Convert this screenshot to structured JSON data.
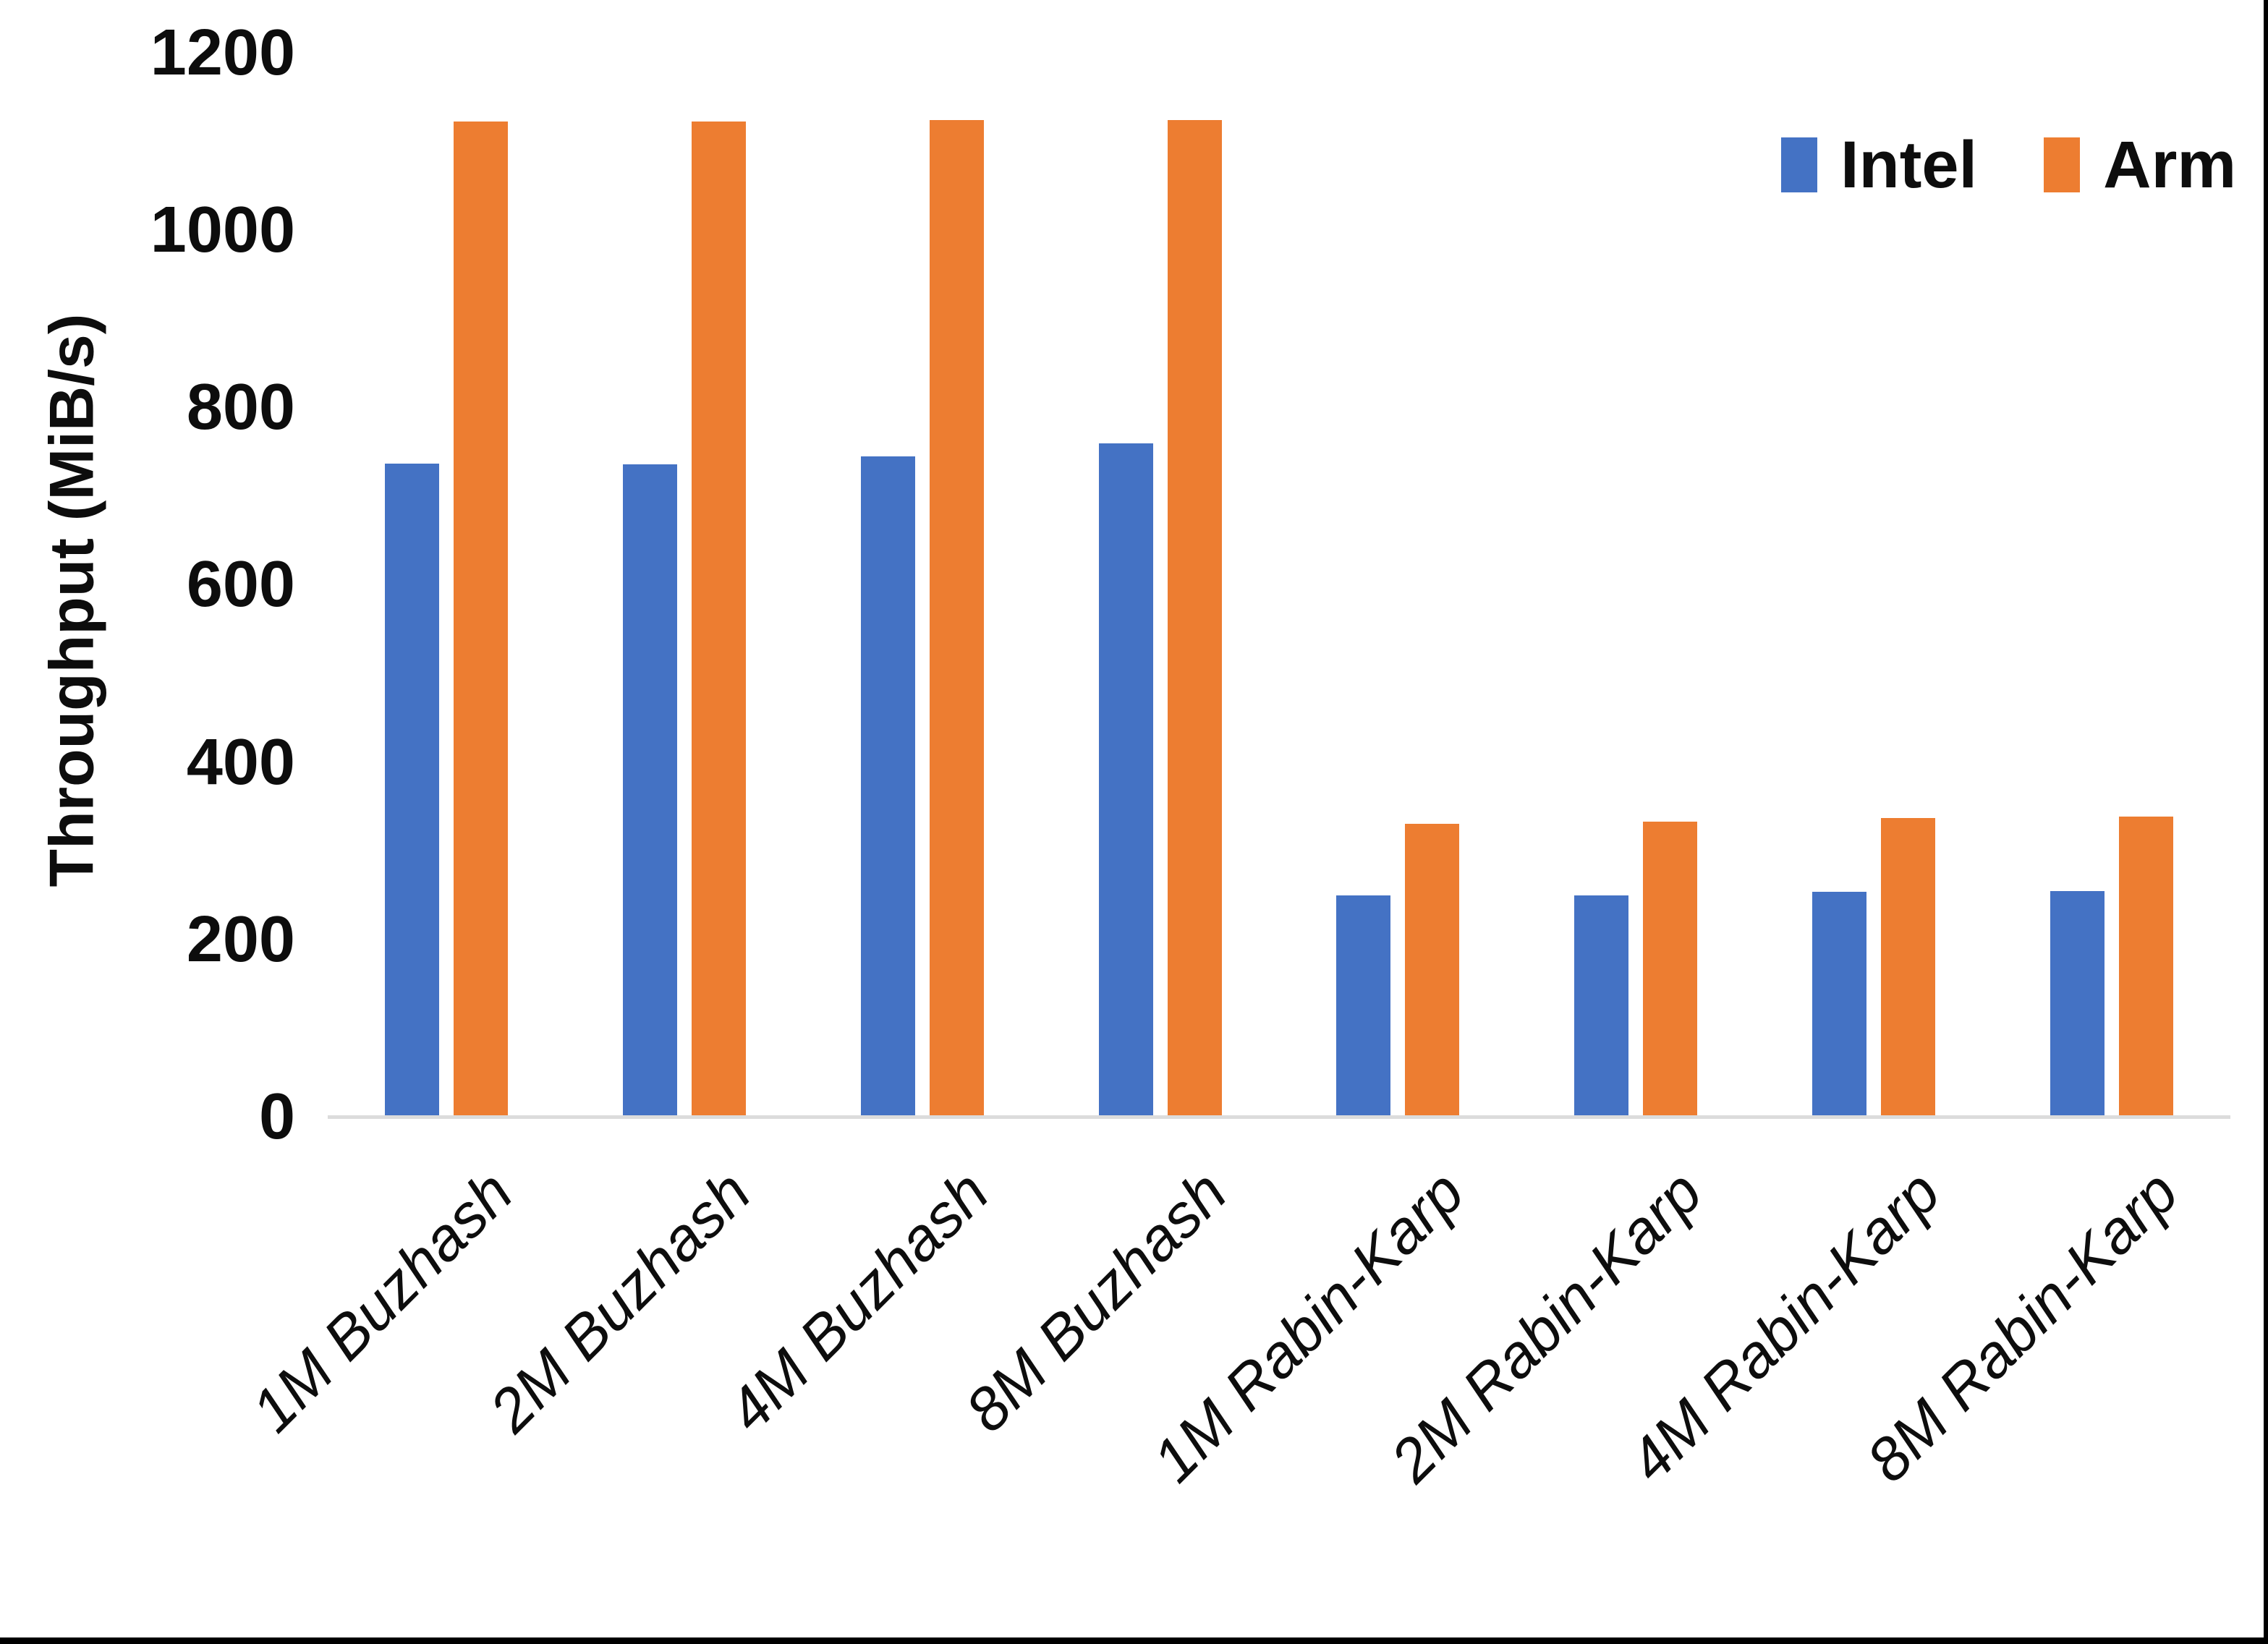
{
  "colors": {
    "background": "#ffffff",
    "axis_line": "#dcdcdc",
    "text": "#0d0d0d",
    "frame_border": "#000000",
    "intel": "#4472C4",
    "arm": "#ED7D31"
  },
  "legend": {
    "position": "top-right",
    "items": [
      {
        "label": "Intel",
        "color": "#4472C4"
      },
      {
        "label": "Arm",
        "color": "#ED7D31"
      }
    ]
  },
  "chart_data": {
    "type": "bar",
    "title": "",
    "xlabel": "",
    "ylabel": "Throughput (MiB/s)",
    "ylim": [
      0,
      1200
    ],
    "yticks": [
      0,
      200,
      400,
      600,
      800,
      1000,
      1200
    ],
    "grid": false,
    "legend_position": "top-right",
    "categories": [
      "1M Buzhash",
      "2M Buzhash",
      "4M Buzhash",
      "8M Buzhash",
      "1M Rabin-Karp",
      "2M Rabin-Karp",
      "4M Rabin-Karp",
      "8M Rabin-Karp"
    ],
    "series": [
      {
        "name": "Intel",
        "color": "#4472C4",
        "values": [
          735,
          734,
          743,
          758,
          248,
          248,
          252,
          253
        ]
      },
      {
        "name": "Arm",
        "color": "#ED7D31",
        "values": [
          1121,
          1121,
          1122,
          1122,
          329,
          331,
          335,
          337
        ]
      }
    ]
  }
}
